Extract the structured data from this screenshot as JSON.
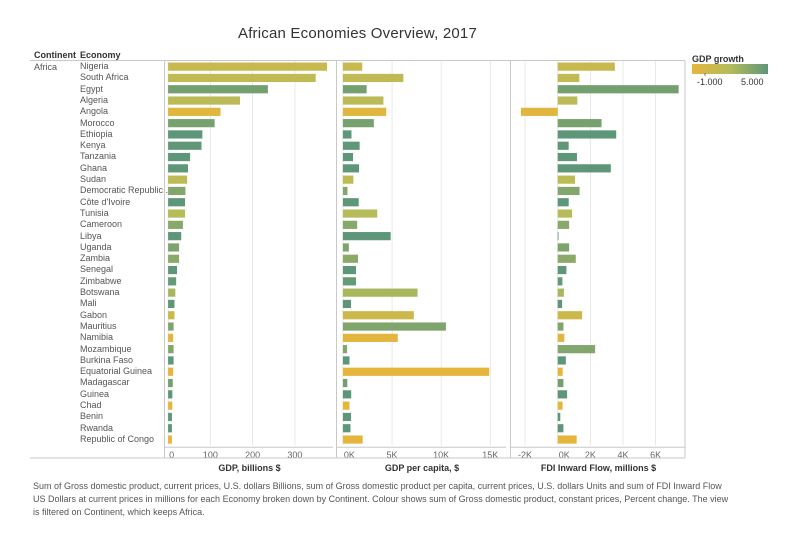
{
  "title": "African Economies Overview, 2017",
  "headers": {
    "continent": "Continent",
    "economy": "Economy"
  },
  "continent": "Africa",
  "legend": {
    "title": "GDP growth",
    "min_label": "-1.000",
    "max_label": "5.000"
  },
  "footnote": "Sum of Gross domestic product, current prices, U.S. dollars Billions, sum of Gross domestic product per capita, current prices, U.S. dollars Units and sum of FDI Inward Flow US Dollars at current prices in millions for each Economy broken down by Continent.  Colour shows sum of Gross domestic product, constant prices, Percent change. The view is filtered on Continent, which keeps Africa.",
  "colors": {
    "low": "#e6b53c",
    "mid": "#b3bc5a",
    "high": "#5d9678",
    "grid": "#d9d9d9",
    "divider": "#c8c8c8"
  },
  "chart_data": {
    "type": "bar",
    "orientation": "horizontal",
    "color_measure": "GDP growth",
    "color_range": [
      -1,
      5
    ],
    "categories": [
      "Nigeria",
      "South Africa",
      "Egypt",
      "Algeria",
      "Angola",
      "Morocco",
      "Ethiopia",
      "Kenya",
      "Tanzania",
      "Ghana",
      "Sudan",
      "Democratic Republic..",
      "Côte d'Ivoire",
      "Tunisia",
      "Cameroon",
      "Libya",
      "Uganda",
      "Zambia",
      "Senegal",
      "Zimbabwe",
      "Botswana",
      "Mali",
      "Gabon",
      "Mauritius",
      "Namibia",
      "Mozambique",
      "Burkina Faso",
      "Equatorial Guinea",
      "Madagascar",
      "Guinea",
      "Chad",
      "Benin",
      "Rwanda",
      "Republic of Congo"
    ],
    "gdp_growth": [
      0.8,
      1.3,
      4.2,
      1.6,
      -0.7,
      4.1,
      10.2,
      4.9,
      6.8,
      8.1,
      1.4,
      3.7,
      7.7,
      1.9,
      3.5,
      26.7,
      3.9,
      3.4,
      7.2,
      4.7,
      2.4,
      5.4,
      0.5,
      3.8,
      -0.8,
      3.7,
      6.3,
      -2.9,
      4.2,
      10.6,
      -3.1,
      5.7,
      6.1,
      -3.1
    ],
    "series": [
      {
        "name": "GDP, billions $",
        "xlabel": "GDP, billions $",
        "xlim": [
          -5,
          390
        ],
        "ticks": [
          0,
          100,
          200,
          300
        ],
        "tick_labels": [
          "0",
          "100",
          "200",
          "300"
        ],
        "values": [
          376,
          349,
          236,
          170,
          124,
          110,
          81,
          79,
          52,
          47,
          45,
          41,
          40,
          40,
          35,
          31,
          26,
          26,
          21,
          19,
          17,
          15,
          15,
          13,
          12,
          13,
          13,
          12,
          11,
          10,
          10,
          9,
          9,
          9
        ]
      },
      {
        "name": "GDP per capita, $",
        "xlabel": "GDP per capita, $",
        "xlim": [
          -500,
          16600
        ],
        "ticks": [
          0,
          5000,
          10000,
          15000
        ],
        "tick_labels": [
          "0K",
          "5K",
          "10K",
          "15K"
        ],
        "values": [
          1968,
          6151,
          2413,
          4123,
          4408,
          3152,
          873,
          1702,
          1034,
          1645,
          1065,
          463,
          1610,
          3496,
          1452,
          4859,
          604,
          1539,
          1329,
          1333,
          7596,
          825,
          7221,
          10485,
          5587,
          426,
          670,
          14900,
          449,
          845,
          670,
          829,
          771,
          2010
        ]
      },
      {
        "name": "FDI Inward Flow, millions $",
        "xlabel": "FDI Inward Flow, millions $",
        "xlim": [
          -2800,
          7800
        ],
        "ticks": [
          -2000,
          0,
          2000,
          4000,
          6000
        ],
        "tick_labels": [
          "-2K",
          "0K",
          "2K",
          "4K",
          "6K"
        ],
        "values": [
          3503,
          1325,
          7409,
          1203,
          -2254,
          2686,
          3586,
          672,
          1180,
          3255,
          1065,
          1340,
          675,
          881,
          700,
          31,
          700,
          1108,
          532,
          289,
          380,
          270,
          1498,
          351,
          407,
          2293,
          500,
          304,
          349,
          577,
          300,
          160,
          350,
          1163
        ]
      }
    ]
  }
}
